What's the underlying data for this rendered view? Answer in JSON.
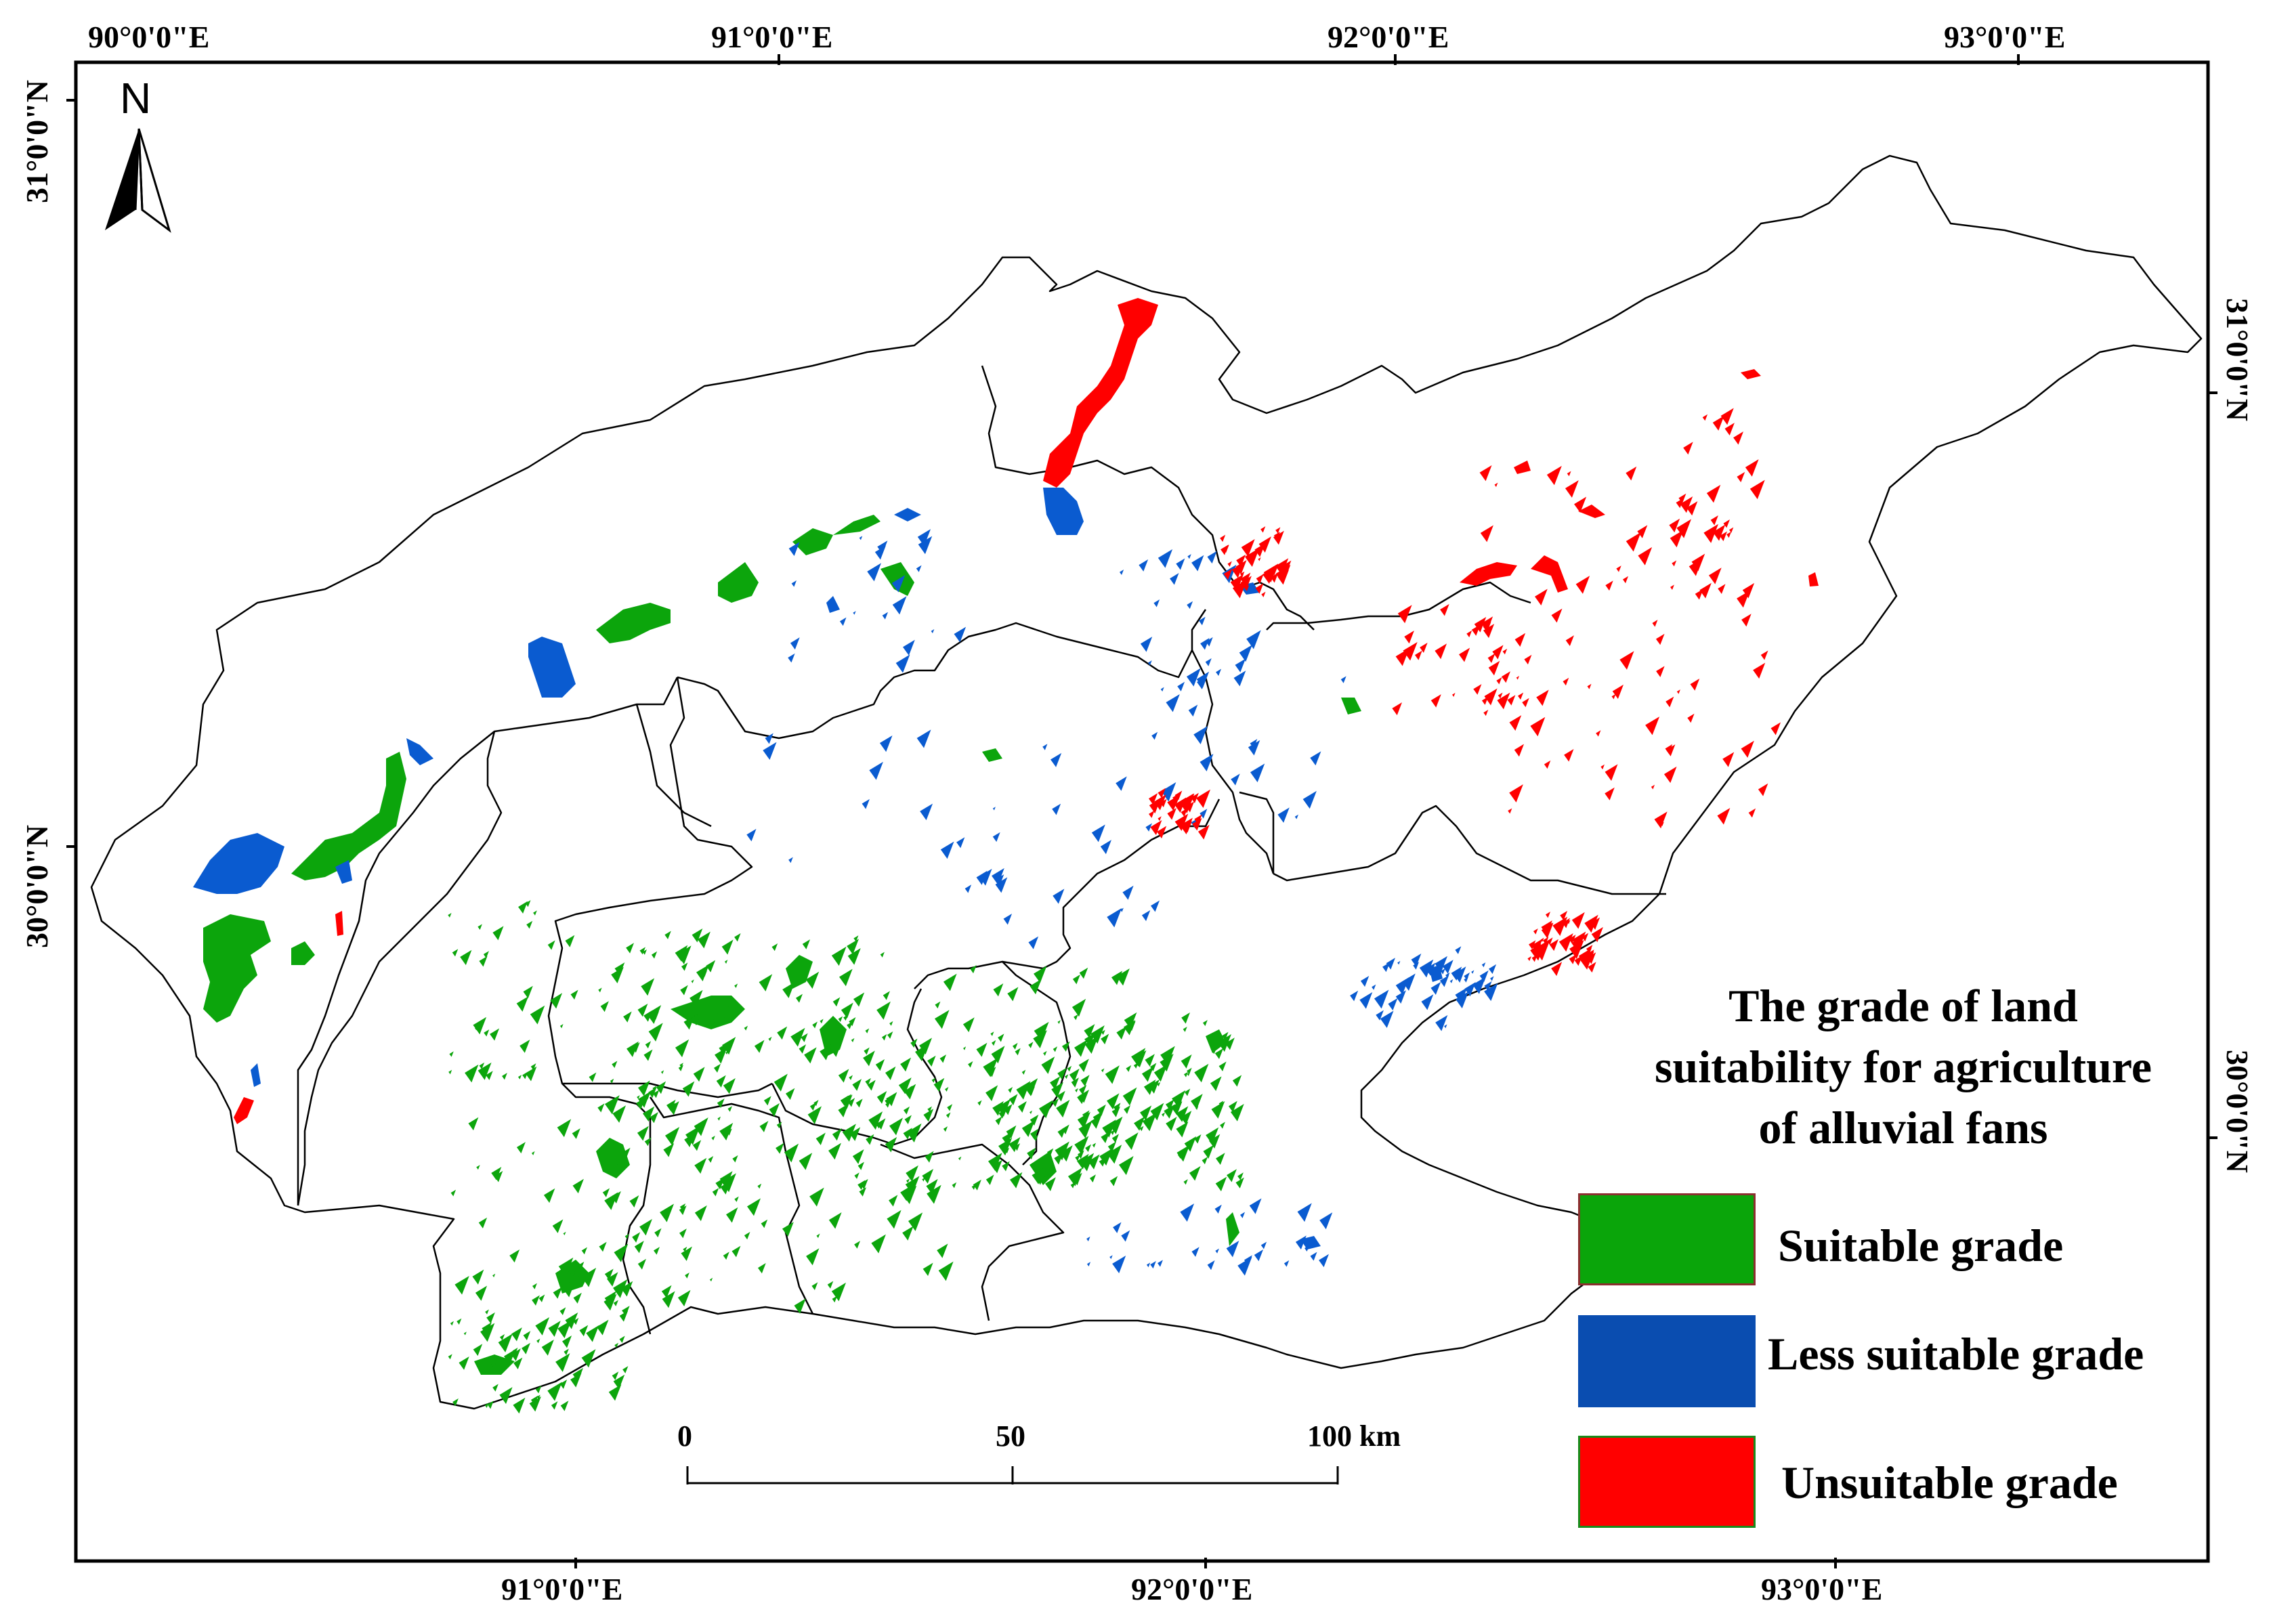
{
  "map": {
    "top_longitudes": [
      "90°0'0\"E",
      "91°0'0\"E",
      "92°0'0\"E",
      "93°0'0\"E"
    ],
    "bottom_longitudes": [
      "91°0'0\"E",
      "92°0'0\"E",
      "93°0'0\"E"
    ],
    "left_latitudes": [
      "31°0'0\"N",
      "30°0'0\"N"
    ],
    "right_latitudes": [
      "31°0'0\"N",
      "30°0'0\"N"
    ],
    "north_arrow_label": "N",
    "scale_bar": {
      "labels": [
        "0",
        "50",
        "100 km"
      ]
    },
    "colors": {
      "suitable": "#0ca50c",
      "less_suitable": "#0a5bd0",
      "unsuitable": "#ff0000",
      "boundary": "#000000"
    }
  },
  "legend": {
    "title_lines": [
      "The grade of land",
      "suitability for agriculture",
      "of alluvial fans"
    ],
    "items": [
      {
        "label": "Suitable grade",
        "color": "#0aa50a"
      },
      {
        "label": "Less suitable grade",
        "color": "#0a4db0"
      },
      {
        "label": "Unsuitable grade",
        "color": "#ff0000"
      }
    ]
  }
}
